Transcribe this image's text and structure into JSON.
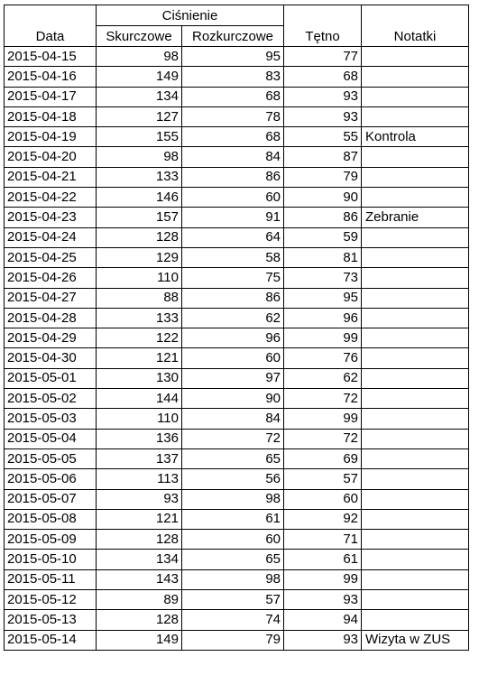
{
  "headers": {
    "date": "Data",
    "pressure_group": "Ciśnienie",
    "systolic": "Skurczowe",
    "diastolic": "Rozkurczowe",
    "pulse": "Tętno",
    "notes": "Notatki"
  },
  "rows": [
    {
      "date": "2015-04-15",
      "systolic": "98",
      "diastolic": "95",
      "pulse": "77",
      "notes": ""
    },
    {
      "date": "2015-04-16",
      "systolic": "149",
      "diastolic": "83",
      "pulse": "68",
      "notes": ""
    },
    {
      "date": "2015-04-17",
      "systolic": "134",
      "diastolic": "68",
      "pulse": "93",
      "notes": ""
    },
    {
      "date": "2015-04-18",
      "systolic": "127",
      "diastolic": "78",
      "pulse": "93",
      "notes": ""
    },
    {
      "date": "2015-04-19",
      "systolic": "155",
      "diastolic": "68",
      "pulse": "55",
      "notes": "Kontrola"
    },
    {
      "date": "2015-04-20",
      "systolic": "98",
      "diastolic": "84",
      "pulse": "87",
      "notes": ""
    },
    {
      "date": "2015-04-21",
      "systolic": "133",
      "diastolic": "86",
      "pulse": "79",
      "notes": ""
    },
    {
      "date": "2015-04-22",
      "systolic": "146",
      "diastolic": "60",
      "pulse": "90",
      "notes": ""
    },
    {
      "date": "2015-04-23",
      "systolic": "157",
      "diastolic": "91",
      "pulse": "86",
      "notes": "Zebranie"
    },
    {
      "date": "2015-04-24",
      "systolic": "128",
      "diastolic": "64",
      "pulse": "59",
      "notes": ""
    },
    {
      "date": "2015-04-25",
      "systolic": "129",
      "diastolic": "58",
      "pulse": "81",
      "notes": ""
    },
    {
      "date": "2015-04-26",
      "systolic": "110",
      "diastolic": "75",
      "pulse": "73",
      "notes": ""
    },
    {
      "date": "2015-04-27",
      "systolic": "88",
      "diastolic": "86",
      "pulse": "95",
      "notes": ""
    },
    {
      "date": "2015-04-28",
      "systolic": "133",
      "diastolic": "62",
      "pulse": "96",
      "notes": ""
    },
    {
      "date": "2015-04-29",
      "systolic": "122",
      "diastolic": "96",
      "pulse": "99",
      "notes": ""
    },
    {
      "date": "2015-04-30",
      "systolic": "121",
      "diastolic": "60",
      "pulse": "76",
      "notes": ""
    },
    {
      "date": "2015-05-01",
      "systolic": "130",
      "diastolic": "97",
      "pulse": "62",
      "notes": ""
    },
    {
      "date": "2015-05-02",
      "systolic": "144",
      "diastolic": "90",
      "pulse": "72",
      "notes": ""
    },
    {
      "date": "2015-05-03",
      "systolic": "110",
      "diastolic": "84",
      "pulse": "99",
      "notes": ""
    },
    {
      "date": "2015-05-04",
      "systolic": "136",
      "diastolic": "72",
      "pulse": "72",
      "notes": ""
    },
    {
      "date": "2015-05-05",
      "systolic": "137",
      "diastolic": "65",
      "pulse": "69",
      "notes": ""
    },
    {
      "date": "2015-05-06",
      "systolic": "113",
      "diastolic": "56",
      "pulse": "57",
      "notes": ""
    },
    {
      "date": "2015-05-07",
      "systolic": "93",
      "diastolic": "98",
      "pulse": "60",
      "notes": ""
    },
    {
      "date": "2015-05-08",
      "systolic": "121",
      "diastolic": "61",
      "pulse": "92",
      "notes": ""
    },
    {
      "date": "2015-05-09",
      "systolic": "128",
      "diastolic": "60",
      "pulse": "71",
      "notes": ""
    },
    {
      "date": "2015-05-10",
      "systolic": "134",
      "diastolic": "65",
      "pulse": "61",
      "notes": ""
    },
    {
      "date": "2015-05-11",
      "systolic": "143",
      "diastolic": "98",
      "pulse": "99",
      "notes": ""
    },
    {
      "date": "2015-05-12",
      "systolic": "89",
      "diastolic": "57",
      "pulse": "93",
      "notes": ""
    },
    {
      "date": "2015-05-13",
      "systolic": "128",
      "diastolic": "74",
      "pulse": "94",
      "notes": ""
    },
    {
      "date": "2015-05-14",
      "systolic": "149",
      "diastolic": "79",
      "pulse": "93",
      "notes": "Wizyta w ZUS"
    }
  ]
}
